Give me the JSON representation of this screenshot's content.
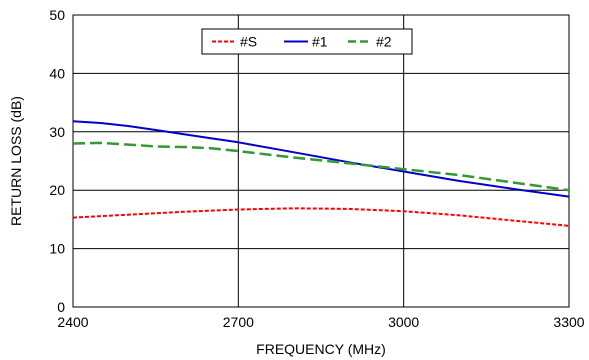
{
  "chart_data": {
    "type": "line",
    "title": "",
    "xlabel": "FREQUENCY (MHz)",
    "ylabel": "RETURN LOSS (dB)",
    "xlim": [
      2400,
      3300
    ],
    "ylim": [
      0,
      50
    ],
    "xticks": [
      2400,
      2700,
      3000,
      3300
    ],
    "yticks": [
      0,
      10,
      20,
      30,
      40,
      50
    ],
    "grid": true,
    "legend_position": "top-center",
    "series": [
      {
        "name": "#S",
        "color": "#ff0000",
        "dash": "dotted",
        "x": [
          2400,
          2500,
          2600,
          2700,
          2800,
          2900,
          3000,
          3100,
          3200,
          3300
        ],
        "y": [
          15.3,
          15.8,
          16.3,
          16.7,
          16.9,
          16.8,
          16.4,
          15.7,
          14.8,
          13.9
        ]
      },
      {
        "name": "#1",
        "color": "#0000cc",
        "dash": "solid",
        "x": [
          2400,
          2450,
          2500,
          2550,
          2600,
          2650,
          2700,
          2800,
          2900,
          3000,
          3100,
          3200,
          3300
        ],
        "y": [
          31.8,
          31.5,
          31.0,
          30.3,
          29.6,
          28.9,
          28.2,
          26.5,
          24.8,
          23.2,
          21.6,
          20.2,
          18.9
        ]
      },
      {
        "name": "#2",
        "color": "#339933",
        "dash": "dashed",
        "x": [
          2400,
          2450,
          2500,
          2550,
          2600,
          2650,
          2700,
          2800,
          2900,
          3000,
          3100,
          3200,
          3300
        ],
        "y": [
          28.0,
          28.1,
          27.8,
          27.5,
          27.4,
          27.2,
          26.7,
          25.6,
          24.6,
          23.6,
          22.6,
          21.3,
          20.0
        ]
      }
    ]
  }
}
